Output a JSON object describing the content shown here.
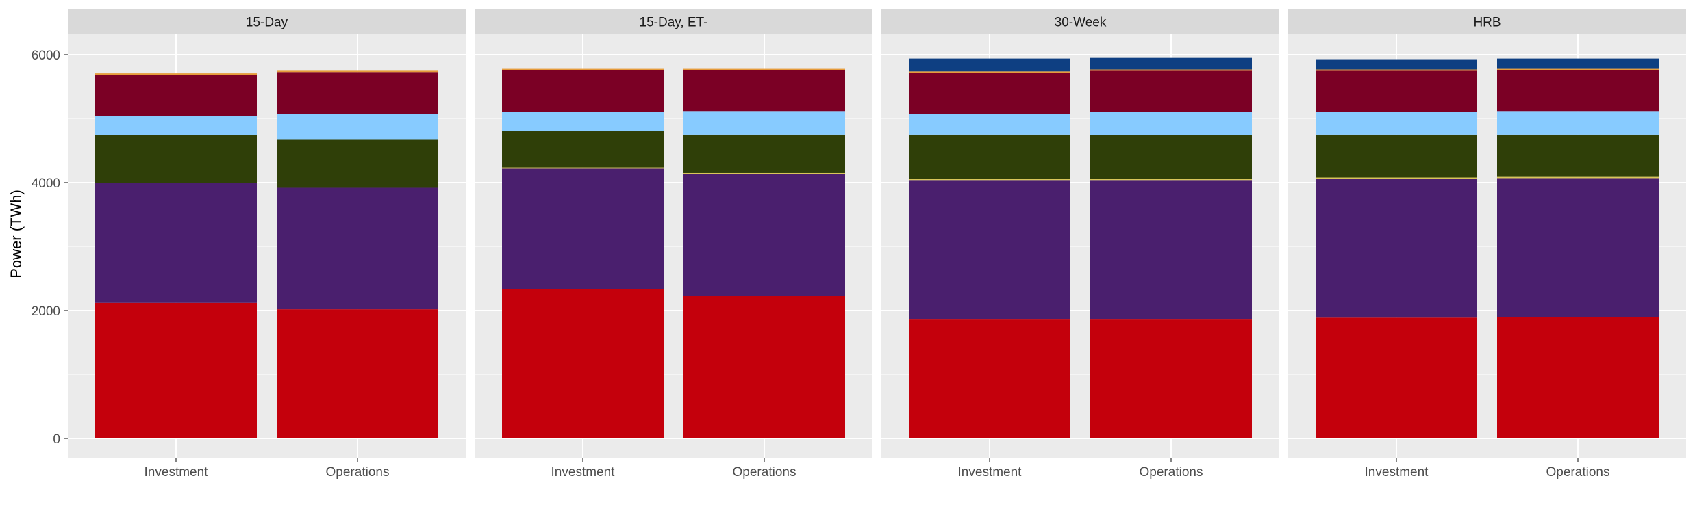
{
  "chart_data": {
    "type": "bar",
    "stacked": true,
    "faceted": true,
    "ylabel": "Power (TWh)",
    "xlabel": "",
    "ylim": [
      0,
      6000
    ],
    "yticks": [
      "0",
      "2000",
      "4000",
      "6000"
    ],
    "categories": [
      "Investment",
      "Operations"
    ],
    "grid": "on",
    "legend": "none",
    "series_colors": [
      "#c4000c",
      "#4a1f6e",
      "#d9c65a",
      "#2f3f08",
      "#87cbff",
      "#7b0025",
      "#e69b3a",
      "#0e3f82"
    ],
    "panels": [
      {
        "title": "15-Day",
        "bars": [
          {
            "category": "Investment",
            "stack": [
              2120,
              1880,
              0,
              740,
              300,
              650,
              20,
              0
            ]
          },
          {
            "category": "Operations",
            "stack": [
              2020,
              1900,
              0,
              760,
              400,
              650,
              20,
              0
            ]
          }
        ]
      },
      {
        "title": "15-Day, ET-",
        "bars": [
          {
            "category": "Investment",
            "stack": [
              2340,
              1880,
              20,
              570,
              300,
              650,
              20,
              0
            ]
          },
          {
            "category": "Operations",
            "stack": [
              2230,
              1900,
              20,
              600,
              370,
              640,
              20,
              0
            ]
          }
        ]
      },
      {
        "title": "30-Week",
        "bars": [
          {
            "category": "Investment",
            "stack": [
              1860,
              2180,
              20,
              690,
              330,
              640,
              20,
              200
            ]
          },
          {
            "category": "Operations",
            "stack": [
              1860,
              2180,
              20,
              680,
              370,
              640,
              20,
              180
            ]
          }
        ]
      },
      {
        "title": "HRB",
        "bars": [
          {
            "category": "Investment",
            "stack": [
              1890,
              2170,
              20,
              670,
              360,
              640,
              20,
              160
            ]
          },
          {
            "category": "Operations",
            "stack": [
              1900,
              2170,
              20,
              660,
              370,
              640,
              20,
              160
            ]
          }
        ]
      }
    ]
  }
}
